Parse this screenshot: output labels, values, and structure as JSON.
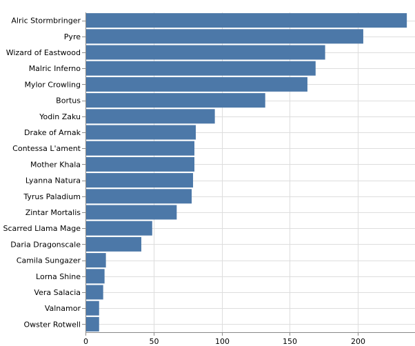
{
  "chart_data": {
    "type": "bar",
    "orientation": "horizontal",
    "categories": [
      "Alric Stormbringer",
      "Pyre",
      "Wizard of Eastwood",
      "Malric Inferno",
      "Mylor Crowling",
      "Bortus",
      "Yodin Zaku",
      "Drake of Arnak",
      "Contessa L'ament",
      "Mother Khala",
      "Lyanna Natura",
      "Tyrus Paladium",
      "Zintar Mortalis",
      "Scarred Llama Mage",
      "Daria Dragonscale",
      "Camila Sungazer",
      "Lorna Shine",
      "Vera Salacia",
      "Valnamor",
      "Owster Rotwell"
    ],
    "values": [
      236,
      204,
      176,
      169,
      163,
      132,
      95,
      81,
      80,
      80,
      79,
      78,
      67,
      49,
      41,
      15,
      14,
      13,
      10,
      10
    ],
    "xlim": [
      0,
      240
    ],
    "xticks": [
      0,
      50,
      100,
      150,
      200
    ],
    "title": "",
    "xlabel": "",
    "ylabel": "",
    "grid": true,
    "bar_color": "#4c78a8"
  }
}
